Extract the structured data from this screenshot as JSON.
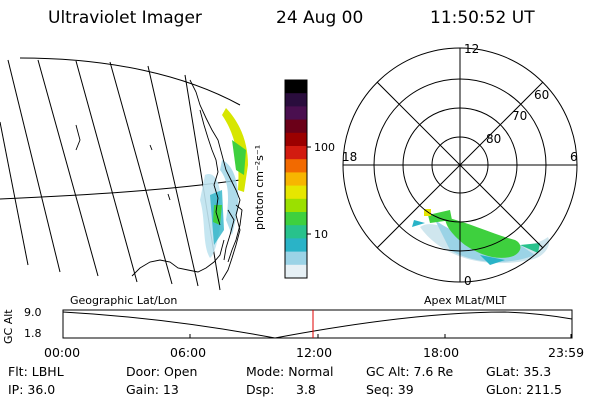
{
  "header": {
    "title": "Ultraviolet Imager",
    "date": "24 Aug 00",
    "time": "11:50:52 UT"
  },
  "colorbar": {
    "unit": "photon cm⁻²s⁻¹",
    "ticks": [
      "100",
      "10"
    ],
    "colors": [
      "#000000",
      "#2a0d3d",
      "#4a0f4f",
      "#6b0018",
      "#9b0000",
      "#d21b10",
      "#f26a00",
      "#f7b500",
      "#e6e600",
      "#9be000",
      "#3ed03e",
      "#28c28c",
      "#2ab3c7",
      "#9bd3e6",
      "#e6f0f5"
    ]
  },
  "polar": {
    "mlt_labels": {
      "top": "12",
      "left": "18",
      "right": "6",
      "bottom": "0"
    },
    "lat_labels": [
      "60",
      "70",
      "80"
    ]
  },
  "panel_labels": {
    "left": "Geographic Lat/Lon",
    "right": "Apex MLat/MLT"
  },
  "altitude_plot": {
    "ylabel": "GC Alt",
    "yticks": [
      "9.0",
      "1.8"
    ],
    "xticks": [
      "00:00",
      "06:00",
      "12:00",
      "18:00",
      "23:59"
    ],
    "current_time_marker": "11:50:52"
  },
  "info": {
    "row1": [
      "Flt: LBHL",
      "Door: Open",
      "Mode: Normal",
      "GC Alt: 7.6 Re",
      "GLat: 35.3"
    ],
    "row2": [
      "IP: 36.0",
      "Gain: 13",
      "Dsp:",
      "3.8",
      "Seq: 39",
      "GLon: 211.5"
    ]
  }
}
